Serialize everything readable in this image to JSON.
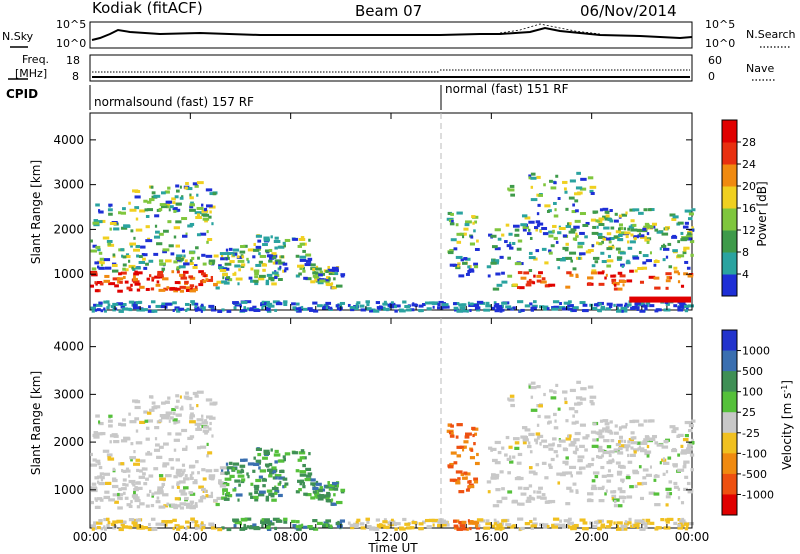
{
  "header": {
    "station": "Kodiak (fitACF)",
    "beam": "Beam 07",
    "date": "06/Nov/2014"
  },
  "noise_panel": {
    "left_label": "N.Sky",
    "right_label": "N.Search",
    "left_ticks": [
      "10^5",
      "10^0"
    ],
    "right_ticks": [
      "10^5",
      "10^0"
    ]
  },
  "freq_panel": {
    "left_label_1": "Freq.",
    "left_label_2": "[MHz]",
    "right_label": "Nave",
    "left_ticks": [
      "18",
      "8"
    ],
    "right_ticks": [
      "60",
      "0"
    ]
  },
  "cpid_panel": {
    "label": "CPID",
    "modes": [
      {
        "name": "normalsound (fast) 157 RF",
        "start_hour": 0
      },
      {
        "name": "normal (fast) 151 RF",
        "start_hour": 14
      }
    ]
  },
  "chart_data": [
    {
      "type": "heatmap",
      "name": "power",
      "xlabel": "Time UT",
      "ylabel": "Slant Range [km]",
      "xlim": [
        0,
        24
      ],
      "ylim": [
        200,
        4600
      ],
      "y_ticks": [
        "1000",
        "2000",
        "3000",
        "4000"
      ],
      "x_tick_labels": [
        "00:00",
        "04:00",
        "08:00",
        "12:00",
        "16:00",
        "20:00",
        "00:00"
      ],
      "colorbar": {
        "label": "Power [dB]",
        "tick_labels": [
          "4",
          "8",
          "12",
          "16",
          "20",
          "24",
          "28"
        ],
        "colors": [
          "#1e2fd6",
          "#2aa3a0",
          "#3e9a4a",
          "#7fc63d",
          "#f0d020",
          "#f08a10",
          "#e83010",
          "#e00000"
        ]
      }
    },
    {
      "type": "heatmap",
      "name": "velocity",
      "xlabel": "Time UT",
      "ylabel": "Slant Range [km]",
      "xlim": [
        0,
        24
      ],
      "ylim": [
        200,
        4600
      ],
      "y_ticks": [
        "1000",
        "2000",
        "3000",
        "4000"
      ],
      "x_tick_labels": [
        "00:00",
        "04:00",
        "08:00",
        "12:00",
        "16:00",
        "20:00",
        "00:00"
      ],
      "colorbar": {
        "label": "Velocity [m s^-1]",
        "tick_labels": [
          "1000",
          "500",
          "100",
          "25",
          "-25",
          "-100",
          "-500",
          "-1000"
        ],
        "colors": [
          "#2233cc",
          "#3a6fb0",
          "#3f8f55",
          "#55c03a",
          "#c8c8c8",
          "#f0c020",
          "#f08a10",
          "#ee5010",
          "#e00000"
        ]
      }
    }
  ]
}
